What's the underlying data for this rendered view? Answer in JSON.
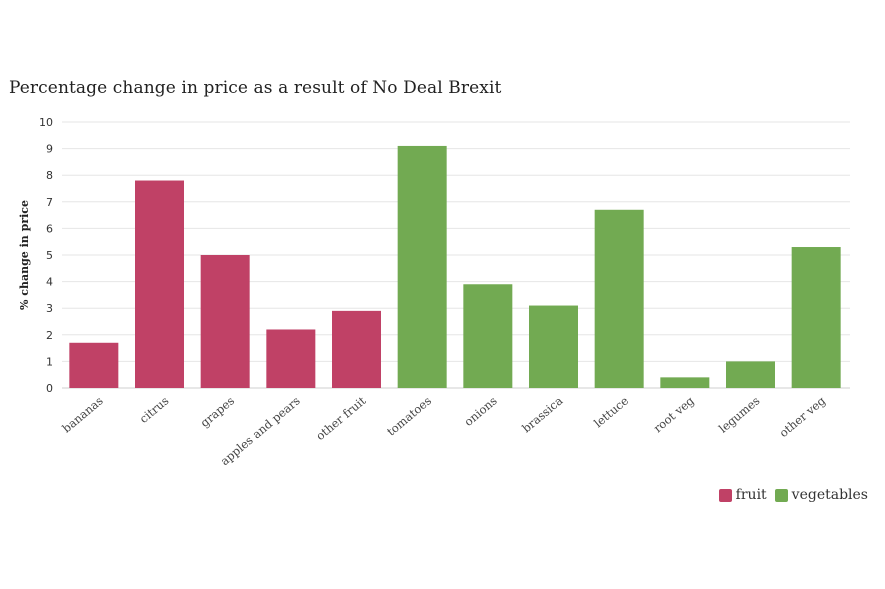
{
  "chart_data": {
    "type": "bar",
    "title": "Percentage change in price as a result of No Deal Brexit",
    "xlabel": "",
    "ylabel": "% change in price",
    "ylim": [
      0,
      10
    ],
    "yticks": [
      "0",
      "1",
      "2",
      "3",
      "4",
      "5",
      "6",
      "7",
      "8",
      "9",
      "10"
    ],
    "grid": true,
    "legend_position": "bottom-right",
    "categories": [
      "bananas",
      "citrus",
      "grapes",
      "apples and pears",
      "other fruit",
      "tomatoes",
      "onions",
      "brassica",
      "lettuce",
      "root veg",
      "legumes",
      "other veg"
    ],
    "values": [
      1.7,
      7.8,
      5.0,
      2.2,
      2.9,
      9.1,
      3.9,
      3.1,
      6.7,
      0.4,
      1.0,
      5.3
    ],
    "groups": [
      "fruit",
      "fruit",
      "fruit",
      "fruit",
      "fruit",
      "vegetables",
      "vegetables",
      "vegetables",
      "vegetables",
      "vegetables",
      "vegetables",
      "vegetables"
    ],
    "legend": [
      {
        "name": "fruit",
        "color": "#c04166"
      },
      {
        "name": "vegetables",
        "color": "#72aa52"
      }
    ]
  }
}
